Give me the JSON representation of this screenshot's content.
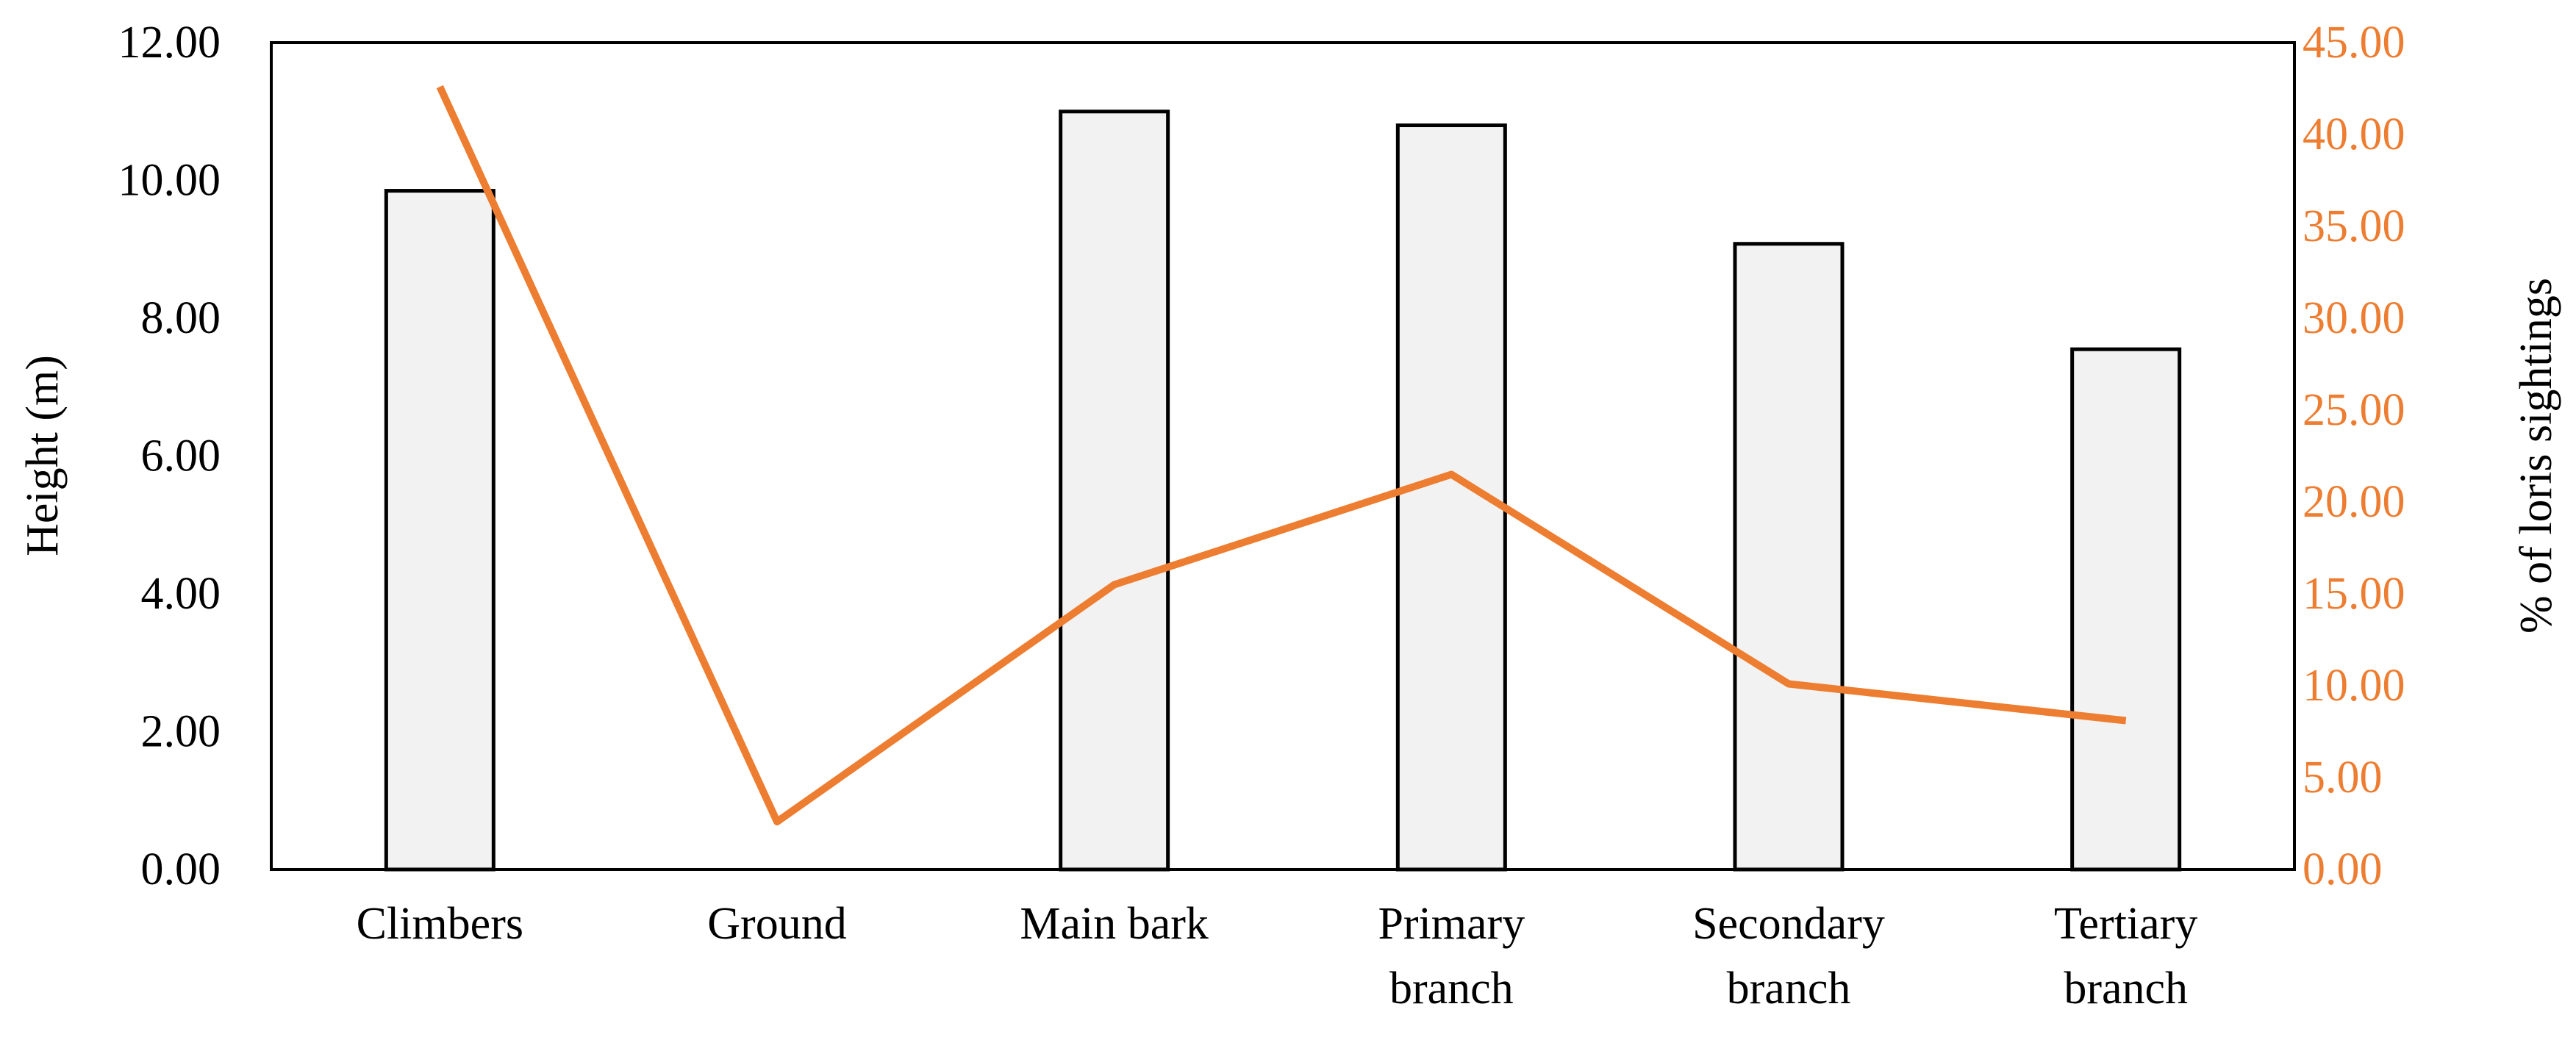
{
  "chart_data": {
    "type": "bar+line",
    "categories": [
      [
        "Climbers"
      ],
      [
        "Ground"
      ],
      [
        "Main bark"
      ],
      [
        "Primary",
        "branch"
      ],
      [
        "Secondary",
        "branch"
      ],
      [
        "Tertiary",
        "branch"
      ]
    ],
    "bar_series": {
      "axis": "left",
      "values": [
        9.85,
        0,
        11.0,
        10.8,
        9.08,
        7.55
      ],
      "fill": "#f2f2f2",
      "stroke": "#000000"
    },
    "line_series": {
      "axis": "right",
      "values": [
        42.6,
        2.6,
        15.5,
        21.5,
        10.1,
        8.1
      ],
      "color": "#ed7d31"
    },
    "left_axis": {
      "label": "Height (m)",
      "min": 0,
      "max": 12,
      "step": 2,
      "ticks": [
        "0.00",
        "2.00",
        "4.00",
        "6.00",
        "8.00",
        "10.00",
        "12.00"
      ]
    },
    "right_axis": {
      "label": "% of loris sightings",
      "min": 0,
      "max": 45,
      "step": 5,
      "color": "#ed7d31",
      "ticks": [
        "0.00",
        "5.00",
        "10.00",
        "15.00",
        "20.00",
        "25.00",
        "30.00",
        "35.00",
        "40.00",
        "45.00"
      ]
    },
    "grid": false,
    "legend": "none"
  }
}
